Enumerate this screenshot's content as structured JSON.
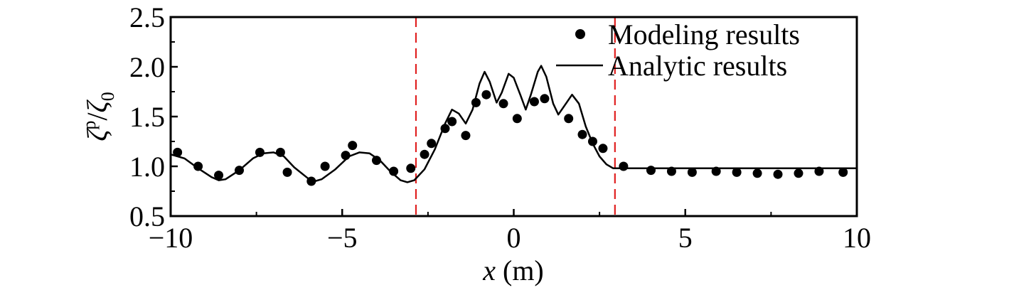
{
  "chart_data": {
    "type": "line",
    "xlabel_var": "x",
    "xlabel_unit": " (m)",
    "ylabel": "ζp/ζ0",
    "ylabel_parts": {
      "base": "ζ",
      "sup": "p",
      "slash": "/",
      "base2": "ζ",
      "sub": "0"
    },
    "xlim": [
      -10,
      10
    ],
    "ylim": [
      0.5,
      2.5
    ],
    "x_ticks": [
      -10,
      -5,
      0,
      5,
      10
    ],
    "x_tick_labels": [
      "−10",
      "−5",
      "0",
      "5",
      "10"
    ],
    "y_ticks": [
      0.5,
      1.0,
      1.5,
      2.0,
      2.5
    ],
    "y_tick_labels": [
      "0.5",
      "1.0",
      "1.5",
      "2.0",
      "2.5"
    ],
    "legend_position": "top-right",
    "reference_lines": {
      "x": [
        -2.85,
        2.95
      ],
      "style": "dashed",
      "color": "#e02020"
    },
    "series": [
      {
        "name": "Modeling results",
        "kind": "scatter",
        "color": "#000000",
        "points": [
          [
            -9.8,
            1.14
          ],
          [
            -9.2,
            1.0
          ],
          [
            -8.6,
            0.91
          ],
          [
            -8.0,
            0.96
          ],
          [
            -7.4,
            1.14
          ],
          [
            -6.8,
            1.14
          ],
          [
            -6.6,
            0.94
          ],
          [
            -5.9,
            0.85
          ],
          [
            -5.5,
            1.0
          ],
          [
            -4.9,
            1.11
          ],
          [
            -4.7,
            1.21
          ],
          [
            -4.0,
            1.06
          ],
          [
            -3.5,
            0.95
          ],
          [
            -3.0,
            0.98
          ],
          [
            -2.6,
            1.12
          ],
          [
            -2.4,
            1.23
          ],
          [
            -2.0,
            1.38
          ],
          [
            -1.8,
            1.45
          ],
          [
            -1.4,
            1.31
          ],
          [
            -1.1,
            1.64
          ],
          [
            -0.8,
            1.72
          ],
          [
            -0.3,
            1.63
          ],
          [
            0.1,
            1.48
          ],
          [
            0.6,
            1.65
          ],
          [
            0.9,
            1.68
          ],
          [
            1.6,
            1.48
          ],
          [
            2.0,
            1.32
          ],
          [
            2.3,
            1.25
          ],
          [
            2.6,
            1.18
          ],
          [
            3.2,
            1.0
          ],
          [
            4.0,
            0.96
          ],
          [
            4.6,
            0.95
          ],
          [
            5.2,
            0.94
          ],
          [
            5.9,
            0.95
          ],
          [
            6.5,
            0.94
          ],
          [
            7.1,
            0.93
          ],
          [
            7.7,
            0.92
          ],
          [
            8.3,
            0.93
          ],
          [
            8.9,
            0.95
          ],
          [
            9.6,
            0.94
          ]
        ]
      },
      {
        "name": "Analytic results",
        "kind": "line",
        "color": "#000000",
        "points": [
          [
            -10.0,
            1.12
          ],
          [
            -9.6,
            1.08
          ],
          [
            -9.2,
            0.98
          ],
          [
            -8.8,
            0.89
          ],
          [
            -8.6,
            0.86
          ],
          [
            -8.4,
            0.87
          ],
          [
            -8.0,
            0.96
          ],
          [
            -7.6,
            1.08
          ],
          [
            -7.3,
            1.13
          ],
          [
            -7.0,
            1.14
          ],
          [
            -6.7,
            1.1
          ],
          [
            -6.4,
            0.99
          ],
          [
            -6.0,
            0.88
          ],
          [
            -5.8,
            0.85
          ],
          [
            -5.6,
            0.87
          ],
          [
            -5.2,
            0.97
          ],
          [
            -4.8,
            1.1
          ],
          [
            -4.5,
            1.14
          ],
          [
            -4.2,
            1.13
          ],
          [
            -3.9,
            1.06
          ],
          [
            -3.6,
            0.95
          ],
          [
            -3.3,
            0.86
          ],
          [
            -3.1,
            0.84
          ],
          [
            -2.9,
            0.86
          ],
          [
            -2.6,
            0.97
          ],
          [
            -2.3,
            1.17
          ],
          [
            -2.0,
            1.43
          ],
          [
            -1.8,
            1.57
          ],
          [
            -1.6,
            1.53
          ],
          [
            -1.4,
            1.43
          ],
          [
            -1.2,
            1.57
          ],
          [
            -1.0,
            1.83
          ],
          [
            -0.85,
            1.95
          ],
          [
            -0.7,
            1.85
          ],
          [
            -0.5,
            1.64
          ],
          [
            -0.35,
            1.74
          ],
          [
            -0.15,
            1.93
          ],
          [
            0.0,
            1.89
          ],
          [
            0.2,
            1.71
          ],
          [
            0.35,
            1.57
          ],
          [
            0.5,
            1.72
          ],
          [
            0.7,
            1.95
          ],
          [
            0.8,
            2.01
          ],
          [
            0.95,
            1.9
          ],
          [
            1.15,
            1.63
          ],
          [
            1.3,
            1.52
          ],
          [
            1.5,
            1.62
          ],
          [
            1.7,
            1.72
          ],
          [
            1.9,
            1.63
          ],
          [
            2.1,
            1.4
          ],
          [
            2.3,
            1.23
          ],
          [
            2.5,
            1.1
          ],
          [
            2.7,
            1.02
          ],
          [
            2.9,
            0.98
          ],
          [
            3.1,
            0.98
          ],
          [
            4.0,
            0.98
          ],
          [
            5.0,
            0.98
          ],
          [
            6.0,
            0.98
          ],
          [
            7.0,
            0.98
          ],
          [
            8.0,
            0.98
          ],
          [
            9.0,
            0.98
          ],
          [
            10.0,
            0.98
          ]
        ]
      }
    ]
  }
}
